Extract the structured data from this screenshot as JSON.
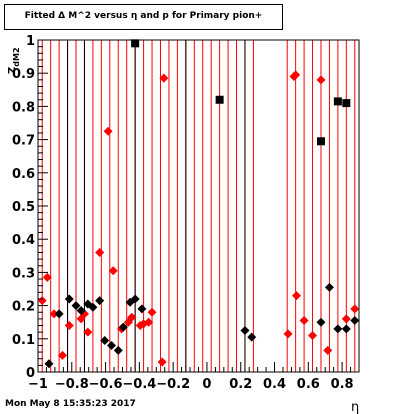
{
  "title": "Fitted Δ M^2 versus η and p for Primary pion+",
  "timestamp": "Mon May  8 15:35:23 2017",
  "chart_data": {
    "type": "scatter",
    "title": "Fitted Δ M^2 versus η and p for Primary pion+",
    "xlabel": "η",
    "ylabel": "Z_dM2",
    "xlim": [
      -1,
      0.9
    ],
    "ylim": [
      0,
      1
    ],
    "x_ticks": [
      -1,
      -0.8,
      -0.6,
      -0.4,
      -0.2,
      0,
      0.2,
      0.4,
      0.6,
      0.8
    ],
    "x_tick_labels": [
      "−1",
      "−0.8",
      "−0.6",
      "−0.4",
      "−0.2",
      "0",
      "0.2",
      "0.4",
      "0.6",
      "0.8"
    ],
    "y_ticks": [
      0,
      0.1,
      0.2,
      0.3,
      0.4,
      0.5,
      0.6,
      0.7,
      0.8,
      0.9,
      1
    ],
    "y_tick_labels": [
      "0",
      "0.1",
      "0.2",
      "0.3",
      "0.4",
      "0.5",
      "0.6",
      "0.7",
      "0.8",
      "0.9",
      "1"
    ],
    "colors": {
      "red": "#ff0000",
      "black": "#000000"
    },
    "red_vlines": [
      -0.975,
      -0.925,
      -0.875,
      -0.825,
      -0.775,
      -0.725,
      -0.675,
      -0.625,
      -0.575,
      -0.525,
      -0.475,
      -0.425,
      -0.375,
      -0.325,
      -0.275,
      -0.225,
      -0.175,
      -0.125,
      -0.075,
      -0.025,
      0.025,
      0.075,
      0.125,
      0.175,
      0.225,
      0.275,
      0.475,
      0.525,
      0.575,
      0.625,
      0.675,
      0.725,
      0.775,
      0.825,
      0.875
    ],
    "black_vlines": [
      -0.825,
      -0.725,
      -0.425,
      -0.125,
      0.225
    ],
    "series": [
      {
        "marker": "red-diamond",
        "color": "#ff0000",
        "points": [
          [
            -0.975,
            0.215
          ],
          [
            -0.945,
            0.285
          ],
          [
            -0.905,
            0.175
          ],
          [
            -0.855,
            0.05
          ],
          [
            -0.815,
            0.14
          ],
          [
            -0.745,
            0.16
          ],
          [
            -0.725,
            0.175
          ],
          [
            -0.705,
            0.12
          ],
          [
            -0.635,
            0.36
          ],
          [
            -0.585,
            0.725
          ],
          [
            -0.555,
            0.305
          ],
          [
            -0.505,
            0.13
          ],
          [
            -0.465,
            0.15
          ],
          [
            -0.445,
            0.165
          ],
          [
            -0.395,
            0.14
          ],
          [
            -0.375,
            0.145
          ],
          [
            -0.345,
            0.15
          ],
          [
            -0.325,
            0.18
          ],
          [
            -0.265,
            0.03
          ],
          [
            -0.255,
            0.885
          ],
          [
            0.48,
            0.115
          ],
          [
            0.515,
            0.89
          ],
          [
            0.525,
            0.895
          ],
          [
            0.53,
            0.23
          ],
          [
            0.575,
            0.155
          ],
          [
            0.625,
            0.11
          ],
          [
            0.675,
            0.88
          ],
          [
            0.715,
            0.065
          ],
          [
            0.825,
            0.16
          ],
          [
            0.875,
            0.19
          ]
        ]
      },
      {
        "marker": "black-diamond",
        "color": "#000000",
        "points": [
          [
            -0.935,
            0.025
          ],
          [
            -0.875,
            0.175
          ],
          [
            -0.815,
            0.22
          ],
          [
            -0.775,
            0.2
          ],
          [
            -0.745,
            0.185
          ],
          [
            -0.705,
            0.205
          ],
          [
            -0.675,
            0.195
          ],
          [
            -0.635,
            0.215
          ],
          [
            -0.605,
            0.095
          ],
          [
            -0.565,
            0.08
          ],
          [
            -0.525,
            0.065
          ],
          [
            -0.495,
            0.135
          ],
          [
            -0.455,
            0.21
          ],
          [
            -0.425,
            0.22
          ],
          [
            -0.385,
            0.19
          ],
          [
            0.225,
            0.125
          ],
          [
            0.265,
            0.105
          ],
          [
            0.675,
            0.15
          ],
          [
            0.725,
            0.255
          ],
          [
            0.775,
            0.13
          ],
          [
            0.825,
            0.13
          ],
          [
            0.875,
            0.155
          ]
        ]
      },
      {
        "marker": "black-square",
        "color": "#000000",
        "points": [
          [
            -0.425,
            0.99
          ],
          [
            0.075,
            0.82
          ],
          [
            0.675,
            0.695
          ],
          [
            0.775,
            0.815
          ],
          [
            0.825,
            0.81
          ]
        ]
      }
    ]
  }
}
